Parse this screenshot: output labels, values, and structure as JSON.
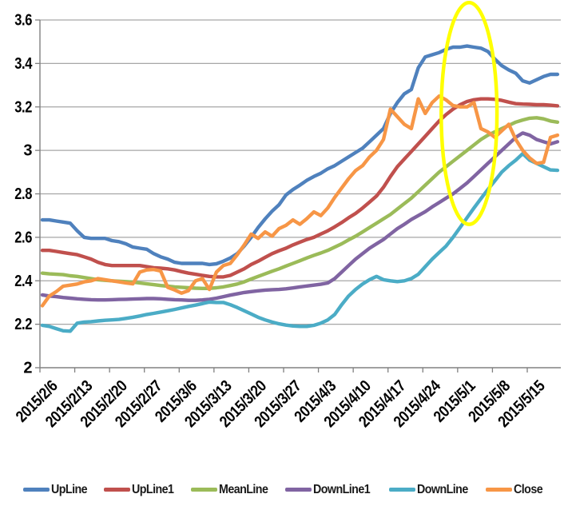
{
  "chart_data": {
    "type": "line",
    "title": "",
    "xlabel": "",
    "ylabel": "",
    "ylim": [
      2,
      3.6
    ],
    "y_tick_labels": [
      "3.6",
      "3.4",
      "3.2",
      "3",
      "2.8",
      "2.6",
      "2.4",
      "2.2",
      "2"
    ],
    "y_tick_values": [
      3.6,
      3.4,
      3.2,
      3.0,
      2.8,
      2.6,
      2.4,
      2.2,
      2.0
    ],
    "x_tick_labels": [
      "2015/2/6",
      "2015/2/13",
      "2015/2/20",
      "2015/2/27",
      "2015/3/6",
      "2015/3/13",
      "2015/3/20",
      "2015/3/27",
      "2015/4/3",
      "2015/4/10",
      "2015/4/17",
      "2015/4/24",
      "2015/5/1",
      "2015/5/8",
      "2015/5/15"
    ],
    "x_points_per_tick": 5,
    "grid": true,
    "legend_position": "bottom",
    "colors": {
      "grid": "#A6A6A6",
      "axis": "#808080",
      "tick_text": "#000000",
      "background": "#FFFFFF",
      "annotation": "#FFFF00"
    },
    "annotation": {
      "shape": "ellipse",
      "center_day": 61.3,
      "center_value": 3.17,
      "rx_days": 4.0,
      "ry_value": 0.51
    },
    "series": [
      {
        "name": "UpLine",
        "color": "#4F81BD",
        "values": [
          2.68,
          2.68,
          2.675,
          2.67,
          2.665,
          2.63,
          2.6,
          2.595,
          2.595,
          2.595,
          2.585,
          2.58,
          2.57,
          2.555,
          2.55,
          2.545,
          2.525,
          2.51,
          2.5,
          2.485,
          2.48,
          2.48,
          2.48,
          2.48,
          2.475,
          2.478,
          2.49,
          2.505,
          2.525,
          2.56,
          2.6,
          2.645,
          2.685,
          2.72,
          2.75,
          2.795,
          2.82,
          2.84,
          2.862,
          2.88,
          2.895,
          2.915,
          2.93,
          2.95,
          2.97,
          2.99,
          3.01,
          3.04,
          3.07,
          3.1,
          3.17,
          3.22,
          3.26,
          3.28,
          3.38,
          3.43,
          3.44,
          3.45,
          3.465,
          3.475,
          3.475,
          3.48,
          3.475,
          3.47,
          3.455,
          3.42,
          3.39,
          3.37,
          3.355,
          3.32,
          3.31,
          3.325,
          3.34,
          3.35,
          3.35
        ]
      },
      {
        "name": "UpLine1",
        "color": "#C0504D",
        "values": [
          2.54,
          2.54,
          2.535,
          2.53,
          2.525,
          2.52,
          2.51,
          2.5,
          2.485,
          2.475,
          2.47,
          2.47,
          2.47,
          2.47,
          2.47,
          2.465,
          2.46,
          2.458,
          2.455,
          2.45,
          2.442,
          2.435,
          2.43,
          2.425,
          2.42,
          2.418,
          2.418,
          2.425,
          2.44,
          2.455,
          2.475,
          2.49,
          2.508,
          2.525,
          2.538,
          2.55,
          2.565,
          2.578,
          2.59,
          2.6,
          2.615,
          2.63,
          2.648,
          2.668,
          2.69,
          2.71,
          2.735,
          2.762,
          2.79,
          2.83,
          2.88,
          2.925,
          2.96,
          2.995,
          3.03,
          3.065,
          3.1,
          3.135,
          3.165,
          3.19,
          3.21,
          3.225,
          3.233,
          3.237,
          3.237,
          3.235,
          3.23,
          3.222,
          3.215,
          3.213,
          3.212,
          3.21,
          3.21,
          3.208,
          3.205
        ]
      },
      {
        "name": "MeanLine",
        "color": "#9BBB59",
        "values": [
          2.435,
          2.432,
          2.43,
          2.428,
          2.423,
          2.42,
          2.415,
          2.41,
          2.405,
          2.402,
          2.4,
          2.398,
          2.396,
          2.394,
          2.39,
          2.386,
          2.382,
          2.378,
          2.375,
          2.372,
          2.37,
          2.368,
          2.366,
          2.365,
          2.365,
          2.368,
          2.372,
          2.378,
          2.385,
          2.395,
          2.408,
          2.42,
          2.432,
          2.444,
          2.455,
          2.468,
          2.48,
          2.492,
          2.505,
          2.517,
          2.528,
          2.54,
          2.555,
          2.57,
          2.588,
          2.605,
          2.625,
          2.645,
          2.665,
          2.685,
          2.705,
          2.73,
          2.755,
          2.78,
          2.81,
          2.84,
          2.87,
          2.9,
          2.925,
          2.95,
          2.975,
          3.0,
          3.025,
          3.05,
          3.07,
          3.085,
          3.1,
          3.115,
          3.13,
          3.14,
          3.148,
          3.15,
          3.145,
          3.135,
          3.13
        ]
      },
      {
        "name": "DownLine1",
        "color": "#8064A2",
        "values": [
          2.335,
          2.33,
          2.327,
          2.323,
          2.32,
          2.317,
          2.315,
          2.313,
          2.312,
          2.312,
          2.313,
          2.314,
          2.315,
          2.316,
          2.317,
          2.318,
          2.318,
          2.317,
          2.315,
          2.313,
          2.312,
          2.31,
          2.31,
          2.312,
          2.315,
          2.32,
          2.327,
          2.334,
          2.34,
          2.346,
          2.35,
          2.354,
          2.357,
          2.359,
          2.36,
          2.363,
          2.367,
          2.372,
          2.376,
          2.38,
          2.384,
          2.39,
          2.41,
          2.44,
          2.47,
          2.5,
          2.525,
          2.55,
          2.57,
          2.59,
          2.615,
          2.64,
          2.66,
          2.682,
          2.7,
          2.718,
          2.74,
          2.76,
          2.78,
          2.8,
          2.825,
          2.85,
          2.88,
          2.91,
          2.94,
          2.97,
          3.0,
          3.03,
          3.06,
          3.08,
          3.07,
          3.05,
          3.04,
          3.03,
          3.04
        ]
      },
      {
        "name": "DownLine",
        "color": "#4BACC6",
        "values": [
          2.195,
          2.19,
          2.18,
          2.17,
          2.168,
          2.205,
          2.21,
          2.212,
          2.215,
          2.218,
          2.22,
          2.222,
          2.227,
          2.232,
          2.238,
          2.245,
          2.25,
          2.256,
          2.262,
          2.268,
          2.275,
          2.282,
          2.288,
          2.295,
          2.302,
          2.3,
          2.3,
          2.29,
          2.277,
          2.262,
          2.247,
          2.232,
          2.22,
          2.21,
          2.202,
          2.196,
          2.192,
          2.19,
          2.19,
          2.195,
          2.205,
          2.22,
          2.245,
          2.29,
          2.33,
          2.36,
          2.385,
          2.405,
          2.42,
          2.405,
          2.4,
          2.396,
          2.4,
          2.41,
          2.43,
          2.465,
          2.5,
          2.53,
          2.56,
          2.6,
          2.645,
          2.69,
          2.735,
          2.778,
          2.82,
          2.86,
          2.9,
          2.93,
          2.955,
          2.985,
          2.955,
          2.94,
          2.925,
          2.91,
          2.908
        ]
      },
      {
        "name": "Close",
        "color": "#F79646",
        "values": [
          2.285,
          2.33,
          2.35,
          2.375,
          2.38,
          2.385,
          2.395,
          2.4,
          2.41,
          2.405,
          2.4,
          2.395,
          2.39,
          2.386,
          2.44,
          2.45,
          2.452,
          2.445,
          2.37,
          2.358,
          2.343,
          2.355,
          2.4,
          2.41,
          2.36,
          2.44,
          2.47,
          2.48,
          2.52,
          2.565,
          2.615,
          2.595,
          2.625,
          2.605,
          2.64,
          2.655,
          2.68,
          2.66,
          2.686,
          2.717,
          2.7,
          2.735,
          2.784,
          2.827,
          2.87,
          2.907,
          2.93,
          2.97,
          3.0,
          3.05,
          3.19,
          3.155,
          3.12,
          3.1,
          3.237,
          3.17,
          3.22,
          3.25,
          3.232,
          3.206,
          3.2,
          3.2,
          3.22,
          3.1,
          3.085,
          3.06,
          3.09,
          3.12,
          3.05,
          3.0,
          2.965,
          2.94,
          2.945,
          3.06,
          3.07
        ]
      }
    ]
  }
}
